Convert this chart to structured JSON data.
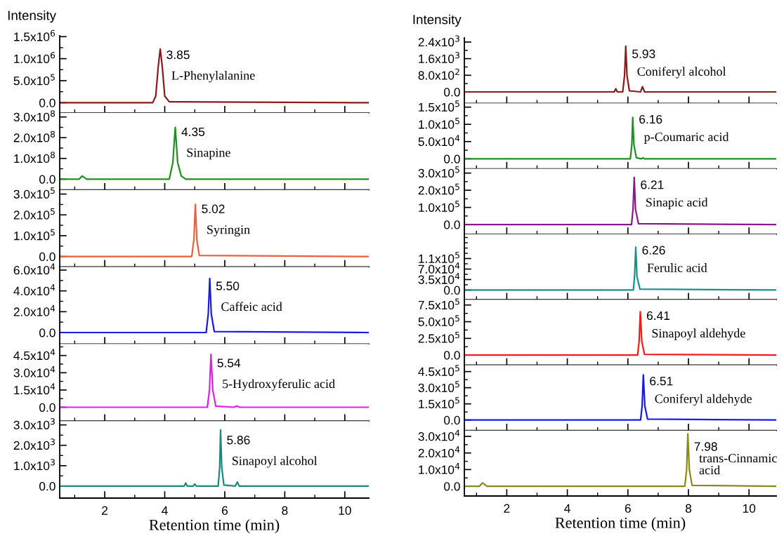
{
  "chart_data": [
    {
      "type": "line",
      "ylabel": "Intensity",
      "x": [
        0.5,
        3.6,
        3.7,
        3.78,
        3.85,
        3.92,
        4.0,
        4.15,
        10.8
      ],
      "series": [
        {
          "color": "#8b1a1a",
          "values": [
            0,
            0,
            150000,
            800000,
            1220000,
            800000,
            150000,
            20000,
            0
          ]
        }
      ],
      "xlim": [
        0.5,
        10.8
      ],
      "xticks": [
        {
          "value": 1,
          "label": null
        },
        2,
        {
          "value": 3,
          "label": null
        },
        4,
        {
          "value": 5,
          "label": null
        },
        6,
        {
          "value": 7,
          "label": null
        },
        8,
        {
          "value": 9,
          "label": null
        },
        10
      ],
      "ylim": [
        -230000,
        1520000
      ],
      "yticks": [
        {
          "value": 0,
          "label": "0.0"
        },
        {
          "value": 250000,
          "label": null
        },
        {
          "value": 500000,
          "label": "5.0x10$^{5}$"
        },
        {
          "value": 750000,
          "label": null
        },
        {
          "value": 1000000,
          "label": "1.0x10$^{6}$"
        },
        {
          "value": 1250000,
          "label": null
        },
        {
          "value": 1500000,
          "label": "1.5x10$^{6}$"
        }
      ],
      "tick_labels": "y",
      "annotations": [
        "3.85",
        "L-Phenylalanine"
      ]
    },
    {
      "type": "line",
      "x": [
        0.5,
        1.15,
        1.25,
        1.4,
        4.15,
        4.27,
        4.35,
        4.43,
        4.55,
        4.7,
        10.8
      ],
      "series": [
        {
          "color": "#1f8f1f",
          "values": [
            0,
            0,
            15000000,
            0,
            0,
            80000000,
            250000000,
            80000000,
            15000000,
            0,
            0
          ]
        }
      ],
      "xlim": [
        0.5,
        10.8
      ],
      "xticks": [
        {
          "value": 1,
          "label": null
        },
        2,
        {
          "value": 3,
          "label": null
        },
        4,
        {
          "value": 5,
          "label": null
        },
        6,
        {
          "value": 7,
          "label": null
        },
        8,
        {
          "value": 9,
          "label": null
        },
        10
      ],
      "ylim": [
        -52000000,
        320000000
      ],
      "yticks": [
        {
          "value": 0,
          "label": "0.0"
        },
        {
          "value": 50000000,
          "label": null
        },
        {
          "value": 100000000,
          "label": "1.0x10$^{8}$"
        },
        {
          "value": 150000000,
          "label": null
        },
        {
          "value": 200000000,
          "label": "2.0x10$^{8}$"
        },
        {
          "value": 250000000,
          "label": null
        },
        {
          "value": 300000000,
          "label": "3.0x10$^{8}$"
        }
      ],
      "tick_labels": "y",
      "annotations": [
        "4.35",
        "Sinapine"
      ]
    },
    {
      "type": "line",
      "x": [
        0.5,
        4.9,
        4.97,
        5.02,
        5.07,
        5.15,
        10.8
      ],
      "series": [
        {
          "color": "#e8603c",
          "values": [
            0,
            0,
            80000,
            250000,
            80000,
            5000,
            0
          ]
        }
      ],
      "xlim": [
        0.5,
        10.8
      ],
      "xticks": [
        {
          "value": 1,
          "label": null
        },
        2,
        {
          "value": 3,
          "label": null
        },
        4,
        {
          "value": 5,
          "label": null
        },
        6,
        {
          "value": 7,
          "label": null
        },
        8,
        {
          "value": 9,
          "label": null
        },
        10
      ],
      "ylim": [
        -50000,
        320000
      ],
      "yticks": [
        {
          "value": 0,
          "label": "0.0"
        },
        {
          "value": 50000,
          "label": null
        },
        {
          "value": 100000,
          "label": "1.0x10$^{5}$"
        },
        {
          "value": 150000,
          "label": null
        },
        {
          "value": 200000,
          "label": "2.0x10$^{5}$"
        },
        {
          "value": 250000,
          "label": null
        },
        {
          "value": 300000,
          "label": "3.0x10$^{5}$"
        }
      ],
      "tick_labels": "y",
      "annotations": [
        "5.02",
        "Syringin"
      ]
    },
    {
      "type": "line",
      "x": [
        0.5,
        5.38,
        5.45,
        5.5,
        5.55,
        5.65,
        10.8
      ],
      "series": [
        {
          "color": "#1a1ae0",
          "values": [
            0,
            0,
            18000,
            52000,
            18000,
            1000,
            0
          ]
        }
      ],
      "xlim": [
        0.5,
        10.8
      ],
      "xticks": [
        {
          "value": 1,
          "label": null
        },
        2,
        {
          "value": 3,
          "label": null
        },
        4,
        {
          "value": 5,
          "label": null
        },
        6,
        {
          "value": 7,
          "label": null
        },
        8,
        {
          "value": 9,
          "label": null
        },
        10
      ],
      "ylim": [
        -11000,
        63000
      ],
      "yticks": [
        {
          "value": 0,
          "label": "0.0"
        },
        {
          "value": 10000,
          "label": null
        },
        {
          "value": 20000,
          "label": "2.0x10$^{4}$"
        },
        {
          "value": 30000,
          "label": null
        },
        {
          "value": 40000,
          "label": "4.0x10$^{4}$"
        },
        {
          "value": 50000,
          "label": null
        },
        {
          "value": 60000,
          "label": "6.0x10$^{4}$"
        }
      ],
      "tick_labels": "y",
      "annotations": [
        "5.50",
        "Caffeic acid"
      ]
    },
    {
      "type": "line",
      "x": [
        0.5,
        5.42,
        5.49,
        5.54,
        5.6,
        5.7,
        6.3,
        6.4,
        6.5,
        10.8
      ],
      "series": [
        {
          "color": "#e020e0",
          "values": [
            0,
            0,
            15000,
            46000,
            15000,
            1000,
            0,
            1000,
            0,
            0
          ]
        }
      ],
      "xlim": [
        0.5,
        10.8
      ],
      "xticks": [
        {
          "value": 1,
          "label": null
        },
        2,
        {
          "value": 3,
          "label": null
        },
        4,
        {
          "value": 5,
          "label": null
        },
        6,
        {
          "value": 7,
          "label": null
        },
        8,
        {
          "value": 9,
          "label": null
        },
        10
      ],
      "ylim": [
        -12000,
        55000
      ],
      "yticks": [
        {
          "value": 0,
          "label": "0.0"
        },
        {
          "value": 7500,
          "label": null
        },
        {
          "value": 15000,
          "label": "1.5x10$^{4}$"
        },
        {
          "value": 22500,
          "label": null
        },
        {
          "value": 30000,
          "label": "3.0x10$^{4}$"
        },
        {
          "value": 37500,
          "label": null
        },
        {
          "value": 45000,
          "label": "4.5x10$^{4}$"
        },
        {
          "value": 52500,
          "label": null
        }
      ],
      "tick_labels": "y",
      "annotations": [
        "5.54",
        "5-Hydroxyferulic acid"
      ]
    },
    {
      "type": "line",
      "xlabel": "Retention time (min)",
      "x": [
        0.5,
        4.65,
        4.7,
        4.75,
        4.95,
        5.0,
        5.05,
        5.78,
        5.83,
        5.86,
        5.9,
        5.97,
        6.35,
        6.42,
        6.48,
        10.8
      ],
      "series": [
        {
          "color": "#1a8a7a",
          "values": [
            0,
            0,
            150,
            0,
            0,
            100,
            0,
            0,
            900,
            2750,
            900,
            50,
            0,
            200,
            0,
            0
          ]
        }
      ],
      "xlim": [
        0.5,
        10.8
      ],
      "xticks": [
        {
          "value": 1,
          "label": null
        },
        2,
        {
          "value": 3,
          "label": null
        },
        4,
        {
          "value": 5,
          "label": null
        },
        6,
        {
          "value": 7,
          "label": null
        },
        8,
        {
          "value": 9,
          "label": null
        },
        10
      ],
      "ylim": [
        -590,
        3190
      ],
      "yticks": [
        {
          "value": 0,
          "label": "0.0"
        },
        {
          "value": 500,
          "label": null
        },
        {
          "value": 1000,
          "label": "1.0x10$^{3}$"
        },
        {
          "value": 1500,
          "label": null
        },
        {
          "value": 2000,
          "label": "2.0x10$^{3}$"
        },
        {
          "value": 2500,
          "label": null
        },
        {
          "value": 3000,
          "label": "3.0x10$^{3}$"
        }
      ],
      "annotations": [
        "5.86",
        "Sinapoyl alcohol"
      ]
    },
    {
      "type": "line",
      "ylabel": "Intensity",
      "x": [
        0.6,
        5.55,
        5.6,
        5.65,
        5.83,
        5.89,
        5.93,
        5.97,
        6.05,
        6.42,
        6.48,
        6.55,
        10.9
      ],
      "series": [
        {
          "color": "#8b1a1a",
          "values": [
            0,
            0,
            150,
            0,
            0,
            800,
            2200,
            800,
            50,
            0,
            250,
            0,
            0
          ]
        }
      ],
      "xlim": [
        0.6,
        10.9
      ],
      "xticks": [
        {
          "value": 1,
          "label": null
        },
        2,
        {
          "value": 3,
          "label": null
        },
        4,
        {
          "value": 5,
          "label": null
        },
        6,
        {
          "value": 7,
          "label": null
        },
        8,
        {
          "value": 9,
          "label": null
        },
        10
      ],
      "ylim": [
        -550,
        2600
      ],
      "yticks": [
        {
          "value": 0,
          "label": "0.0"
        },
        {
          "value": 400,
          "label": null
        },
        {
          "value": 800,
          "label": "8.0x10$^{2}$"
        },
        {
          "value": 1200,
          "label": null
        },
        {
          "value": 1600,
          "label": "1.6x10$^{3}$"
        },
        {
          "value": 2000,
          "label": null
        },
        {
          "value": 2400,
          "label": "2.4x10$^{3}$"
        }
      ],
      "tick_labels": "y",
      "annotations": [
        "5.93",
        "Coniferyl alcohol"
      ]
    },
    {
      "type": "line",
      "x": [
        0.6,
        6.08,
        6.13,
        6.16,
        6.2,
        6.28,
        6.45,
        6.5,
        6.55,
        10.9
      ],
      "series": [
        {
          "color": "#1f8f1f",
          "values": [
            0,
            0,
            40000,
            120000,
            40000,
            3000,
            0,
            3000,
            0,
            0
          ]
        }
      ],
      "xlim": [
        0.6,
        10.9
      ],
      "xticks": [
        {
          "value": 1,
          "label": null
        },
        2,
        {
          "value": 3,
          "label": null
        },
        4,
        {
          "value": 5,
          "label": null
        },
        6,
        {
          "value": 7,
          "label": null
        },
        8,
        {
          "value": 9,
          "label": null
        },
        10
      ],
      "ylim": [
        -29000,
        161000
      ],
      "yticks": [
        {
          "value": 0,
          "label": "0.0"
        },
        {
          "value": 25000,
          "label": null
        },
        {
          "value": 50000,
          "label": "5.0x10$^{4}$"
        },
        {
          "value": 75000,
          "label": null
        },
        {
          "value": 100000,
          "label": "1.0x10$^{5}$"
        },
        {
          "value": 125000,
          "label": null
        },
        {
          "value": 150000,
          "label": "1.5x10$^{5}$"
        }
      ],
      "tick_labels": "y",
      "annotations": [
        "6.16",
        "p-Coumaric acid"
      ]
    },
    {
      "type": "line",
      "x": [
        0.6,
        6.12,
        6.17,
        6.21,
        6.25,
        6.35,
        10.9
      ],
      "series": [
        {
          "color": "#8a1a8a",
          "values": [
            0,
            0,
            90000,
            275000,
            90000,
            5000,
            0
          ]
        }
      ],
      "xlim": [
        0.6,
        10.9
      ],
      "xticks": [
        {
          "value": 1,
          "label": null
        },
        2,
        {
          "value": 3,
          "label": null
        },
        4,
        {
          "value": 5,
          "label": null
        },
        6,
        {
          "value": 7,
          "label": null
        },
        8,
        {
          "value": 9,
          "label": null
        },
        10
      ],
      "ylim": [
        -56000,
        325000
      ],
      "yticks": [
        {
          "value": 0,
          "label": "0.0"
        },
        {
          "value": 50000,
          "label": null
        },
        {
          "value": 100000,
          "label": "1.0x10$^{5}$"
        },
        {
          "value": 150000,
          "label": null
        },
        {
          "value": 200000,
          "label": "2.0x10$^{5}$"
        },
        {
          "value": 250000,
          "label": null
        },
        {
          "value": 300000,
          "label": "3.0x10$^{5}$"
        }
      ],
      "tick_labels": "y",
      "annotations": [
        "6.21",
        "Sinapic acid"
      ]
    },
    {
      "type": "line",
      "x": [
        0.6,
        6.18,
        6.22,
        6.26,
        6.3,
        6.4,
        10.9
      ],
      "series": [
        {
          "color": "#1a8f8f",
          "values": [
            0,
            0,
            45000,
            143000,
            45000,
            3000,
            0
          ]
        }
      ],
      "xlim": [
        0.6,
        10.9
      ],
      "xticks": [
        {
          "value": 1,
          "label": null
        },
        2,
        {
          "value": 3,
          "label": null
        },
        4,
        {
          "value": 5,
          "label": null
        },
        6,
        {
          "value": 7,
          "label": null
        },
        8,
        {
          "value": 9,
          "label": null
        },
        10
      ],
      "ylim": [
        -32000,
        186000
      ],
      "yticks": [
        {
          "value": 0,
          "label": "0.0"
        },
        {
          "value": 17500,
          "label": null
        },
        {
          "value": 35000,
          "label": "3.5x10$^{4}$"
        },
        {
          "value": 52500,
          "label": null
        },
        {
          "value": 70000,
          "label": "7.0x10$^{4}$"
        },
        {
          "value": 87500,
          "label": null
        },
        {
          "value": 105000,
          "label": "1.1x10$^{5}$"
        },
        {
          "value": 122500,
          "label": null
        },
        {
          "value": 140000,
          "label": null
        },
        {
          "value": 157500,
          "label": null
        },
        {
          "value": 175000,
          "label": null
        }
      ],
      "tick_labels": "y",
      "annotations": [
        "6.26",
        "Ferulic acid"
      ]
    },
    {
      "type": "line",
      "x": [
        0.6,
        6.32,
        6.37,
        6.41,
        6.46,
        6.55,
        10.9
      ],
      "series": [
        {
          "color": "#ee1c1c",
          "values": [
            0,
            0,
            200000,
            650000,
            200000,
            10000,
            0
          ]
        }
      ],
      "xlim": [
        0.6,
        10.9
      ],
      "xticks": [
        {
          "value": 1,
          "label": null
        },
        2,
        {
          "value": 3,
          "label": null
        },
        4,
        {
          "value": 5,
          "label": null
        },
        6,
        {
          "value": 7,
          "label": null
        },
        8,
        {
          "value": 9,
          "label": null
        },
        10
      ],
      "ylim": [
        -150000,
        830000
      ],
      "yticks": [
        {
          "value": 0,
          "label": "0.0"
        },
        {
          "value": 125000,
          "label": null
        },
        {
          "value": 250000,
          "label": "2.5x10$^{5}$"
        },
        {
          "value": 375000,
          "label": null
        },
        {
          "value": 500000,
          "label": "5.0x10$^{5}$"
        },
        {
          "value": 625000,
          "label": null
        },
        {
          "value": 750000,
          "label": "7.5x10$^{5}$"
        }
      ],
      "tick_labels": "y",
      "annotations": [
        "6.41",
        "Sinapoyl aldehyde"
      ]
    },
    {
      "type": "line",
      "x": [
        0.6,
        6.42,
        6.47,
        6.51,
        6.56,
        6.65,
        10.9
      ],
      "series": [
        {
          "color": "#1a1aee",
          "values": [
            0,
            0,
            130000,
            420000,
            130000,
            8000,
            0
          ]
        }
      ],
      "xlim": [
        0.6,
        10.9
      ],
      "xticks": [
        {
          "value": 1,
          "label": null
        },
        2,
        {
          "value": 3,
          "label": null
        },
        4,
        {
          "value": 5,
          "label": null
        },
        6,
        {
          "value": 7,
          "label": null
        },
        8,
        {
          "value": 9,
          "label": null
        },
        10
      ],
      "ylim": [
        -98000,
        510000
      ],
      "yticks": [
        {
          "value": 0,
          "label": "0.0"
        },
        {
          "value": 75000,
          "label": null
        },
        {
          "value": 150000,
          "label": "1.5x10$^{5}$"
        },
        {
          "value": 225000,
          "label": null
        },
        {
          "value": 300000,
          "label": "3.0x10$^{5}$"
        },
        {
          "value": 375000,
          "label": null
        },
        {
          "value": 450000,
          "label": "4.5x10$^{5}$"
        }
      ],
      "tick_labels": "y",
      "annotations": [
        "6.51",
        "Coniferyl aldehyde"
      ]
    },
    {
      "type": "line",
      "xlabel": "Retention time (min)",
      "x": [
        0.6,
        1.1,
        1.2,
        1.35,
        7.88,
        7.94,
        7.98,
        8.03,
        8.12,
        10.9
      ],
      "series": [
        {
          "color": "#8a8a1a",
          "values": [
            0,
            0,
            2000,
            0,
            0,
            10000,
            31500,
            10000,
            500,
            0
          ]
        }
      ],
      "xlim": [
        0.6,
        10.9
      ],
      "xticks": [
        {
          "value": 1,
          "label": null
        },
        2,
        {
          "value": 3,
          "label": null
        },
        4,
        {
          "value": 5,
          "label": null
        },
        6,
        {
          "value": 7,
          "label": null
        },
        8,
        {
          "value": 9,
          "label": null
        },
        10
      ],
      "ylim": [
        -5900,
        33500
      ],
      "yticks": [
        {
          "value": 0,
          "label": "0.0"
        },
        {
          "value": 5000,
          "label": null
        },
        {
          "value": 10000,
          "label": "1.0x10$^{4}$"
        },
        {
          "value": 15000,
          "label": null
        },
        {
          "value": 20000,
          "label": "2.0x10$^{4}$"
        },
        {
          "value": 25000,
          "label": null
        },
        {
          "value": 30000,
          "label": "3.0x10$^{4}$"
        }
      ],
      "annotations": [
        "7.98",
        "trans-Cinnamic\nacid"
      ]
    }
  ]
}
